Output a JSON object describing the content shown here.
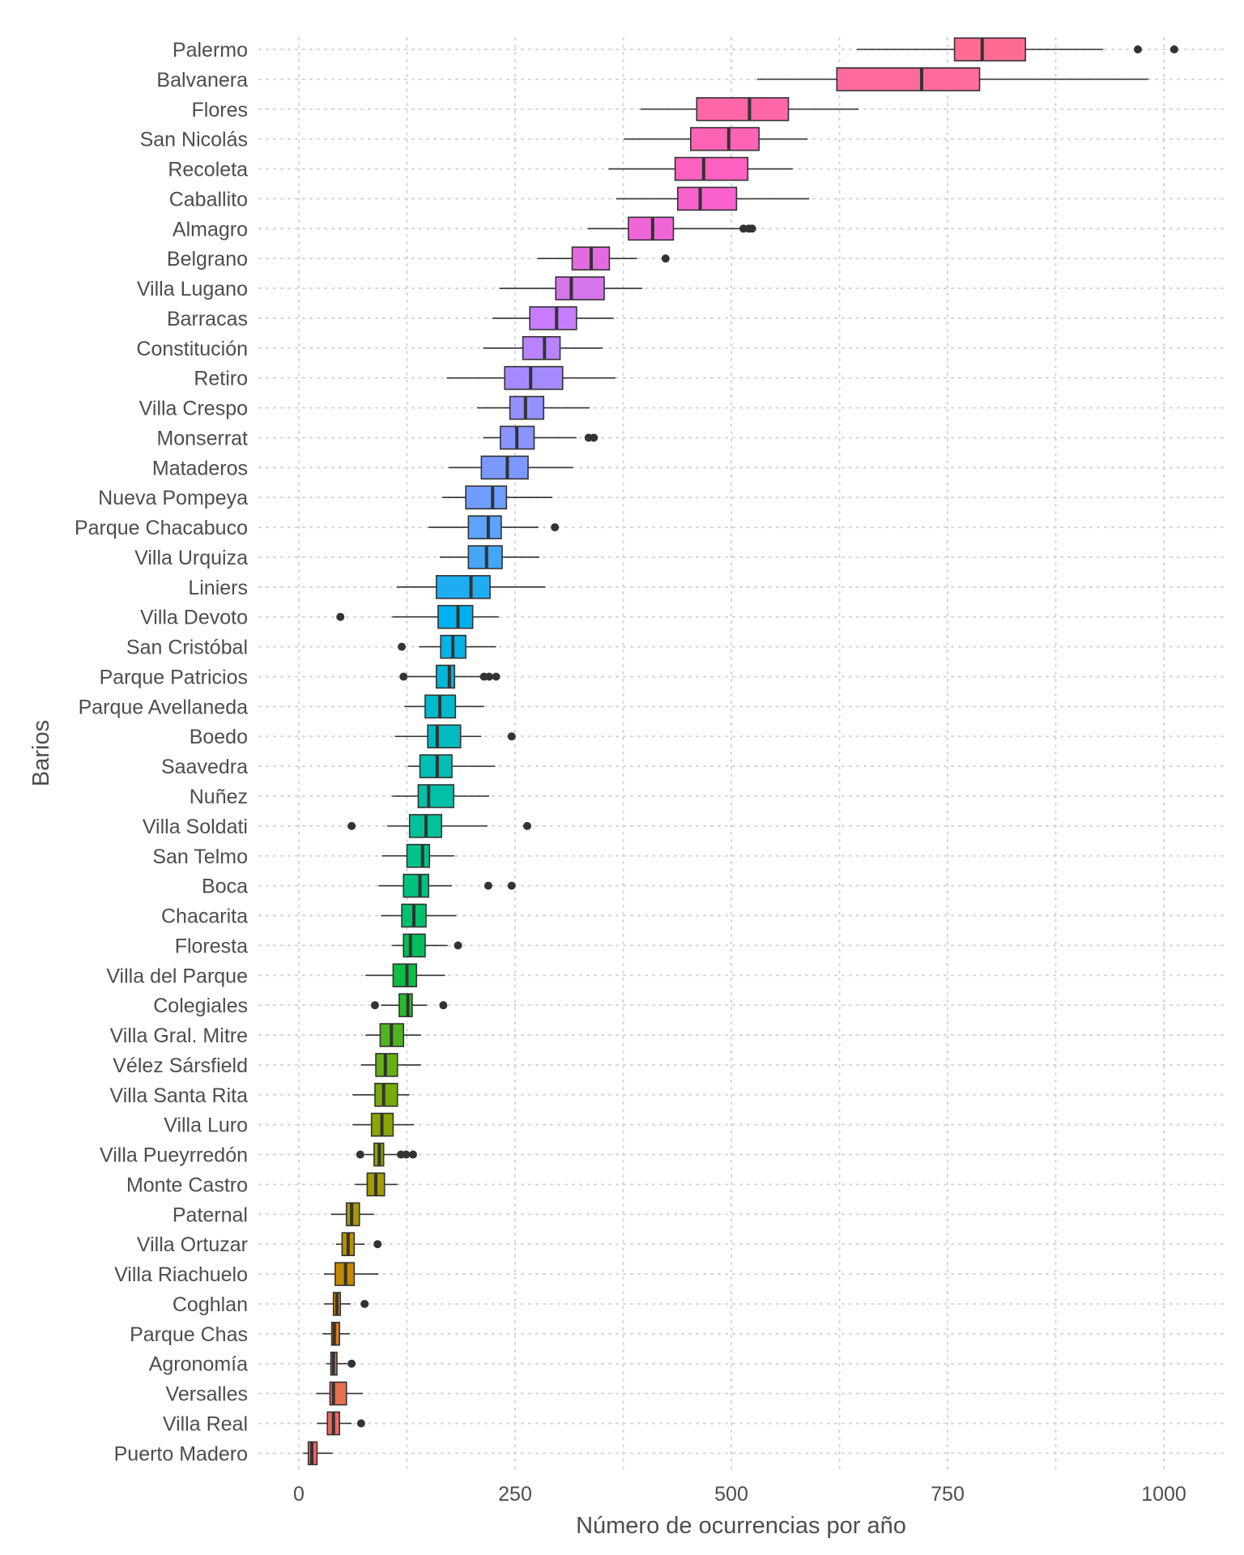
{
  "chart_data": {
    "type": "boxplot",
    "orientation": "horizontal",
    "title": "",
    "xlabel": "Número de ocurrencias por año",
    "ylabel": "Barios",
    "xlim": [
      -55,
      1065
    ],
    "x_ticks": [
      0,
      250,
      500,
      750,
      1000
    ],
    "x_tick_labels": [
      "0",
      "250",
      "500",
      "750",
      "1000"
    ],
    "grid": "dotted major and minor gridlines",
    "legend": "none",
    "categories": [
      "Palermo",
      "Balvanera",
      "Flores",
      "San Nicolás",
      "Recoleta",
      "Caballito",
      "Almagro",
      "Belgrano",
      "Villa Lugano",
      "Barracas",
      "Constitución",
      "Retiro",
      "Villa Crespo",
      "Monserrat",
      "Mataderos",
      "Nueva Pompeya",
      "Parque Chacabuco",
      "Villa Urquiza",
      "Liniers",
      "Villa Devoto",
      "San Cristóbal",
      "Parque Patricios",
      "Parque Avellaneda",
      "Boedo",
      "Saavedra",
      "Nuñez",
      "Villa Soldati",
      "San Telmo",
      "Boca",
      "Chacarita",
      "Floresta",
      "Villa del Parque",
      "Colegiales",
      "Villa Gral. Mitre",
      "Vélez Sársfield",
      "Villa Santa Rita",
      "Villa Luro",
      "Villa Pueyrredón",
      "Monte Castro",
      "Paternal",
      "Villa Ortuzar",
      "Villa Riachuelo",
      "Coghlan",
      "Parque Chas",
      "Agronomía",
      "Versalles",
      "Villa Real",
      "Puerto Madero"
    ],
    "colors": [
      "#FF6C93",
      "#FF6B9E",
      "#FF67A8",
      "#FF63B5",
      "#FD61C1",
      "#F962CC",
      "#F066D8",
      "#E46AE2",
      "#D674EB",
      "#C77CFF",
      "#B983FF",
      "#A58AFF",
      "#9590FF",
      "#8A94FF",
      "#7B98FF",
      "#6E9CFF",
      "#5CA2FF",
      "#45A6F7",
      "#1FADF2",
      "#00B1EF",
      "#00B4E4",
      "#00B7D8",
      "#00B9CC",
      "#00BBC0",
      "#00BEB4",
      "#00C0A7",
      "#00C19A",
      "#00C28C",
      "#00C17D",
      "#00C16C",
      "#00BF5A",
      "#0DBD44",
      "#27BA2D",
      "#4EB51F",
      "#66B013",
      "#78AC0B",
      "#88A700",
      "#94A200",
      "#A29D00",
      "#AD9700",
      "#B99000",
      "#C48900",
      "#D08300",
      "#DB7C1E",
      "#E2773D",
      "#EA6F4E",
      "#F0675B",
      "#F76262"
    ],
    "series": [
      {
        "category": "Palermo",
        "min": 645,
        "q1": 758,
        "median": 790,
        "q3": 840,
        "max": 930,
        "outliers": [
          970,
          1012
        ]
      },
      {
        "category": "Balvanera",
        "min": 530,
        "q1": 622,
        "median": 720,
        "q3": 787,
        "max": 982,
        "outliers": []
      },
      {
        "category": "Flores",
        "min": 395,
        "q1": 460,
        "median": 521,
        "q3": 566,
        "max": 647,
        "outliers": []
      },
      {
        "category": "San Nicolás",
        "min": 376,
        "q1": 453,
        "median": 497,
        "q3": 532,
        "max": 588,
        "outliers": []
      },
      {
        "category": "Recoleta",
        "min": 358,
        "q1": 435,
        "median": 468,
        "q3": 519,
        "max": 571,
        "outliers": []
      },
      {
        "category": "Caballito",
        "min": 367,
        "q1": 438,
        "median": 464,
        "q3": 506,
        "max": 590,
        "outliers": []
      },
      {
        "category": "Almagro",
        "min": 334,
        "q1": 381,
        "median": 409,
        "q3": 433,
        "max": 512,
        "outliers": [
          514,
          520,
          524
        ]
      },
      {
        "category": "Belgrano",
        "min": 276,
        "q1": 316,
        "median": 338,
        "q3": 359,
        "max": 391,
        "outliers": [
          424
        ]
      },
      {
        "category": "Villa Lugano",
        "min": 232,
        "q1": 297,
        "median": 315,
        "q3": 353,
        "max": 397,
        "outliers": []
      },
      {
        "category": "Barracas",
        "min": 224,
        "q1": 267,
        "median": 298,
        "q3": 321,
        "max": 364,
        "outliers": []
      },
      {
        "category": "Constitución",
        "min": 213,
        "q1": 259,
        "median": 284,
        "q3": 302,
        "max": 351,
        "outliers": []
      },
      {
        "category": "Retiro",
        "min": 171,
        "q1": 238,
        "median": 268,
        "q3": 305,
        "max": 366,
        "outliers": []
      },
      {
        "category": "Villa Crespo",
        "min": 206,
        "q1": 244,
        "median": 262,
        "q3": 283,
        "max": 336,
        "outliers": []
      },
      {
        "category": "Monserrat",
        "min": 213,
        "q1": 233,
        "median": 252,
        "q3": 272,
        "max": 321,
        "outliers": [
          335,
          341
        ]
      },
      {
        "category": "Mataderos",
        "min": 173,
        "q1": 211,
        "median": 241,
        "q3": 265,
        "max": 317,
        "outliers": []
      },
      {
        "category": "Nueva Pompeya",
        "min": 166,
        "q1": 193,
        "median": 224,
        "q3": 240,
        "max": 293,
        "outliers": []
      },
      {
        "category": "Parque Chacabuco",
        "min": 150,
        "q1": 196,
        "median": 219,
        "q3": 234,
        "max": 277,
        "outliers": [
          296
        ]
      },
      {
        "category": "Villa Urquiza",
        "min": 163,
        "q1": 196,
        "median": 217,
        "q3": 235,
        "max": 278,
        "outliers": []
      },
      {
        "category": "Liniers",
        "min": 113,
        "q1": 159,
        "median": 199,
        "q3": 221,
        "max": 285,
        "outliers": []
      },
      {
        "category": "Villa Devoto",
        "min": 108,
        "q1": 161,
        "median": 184,
        "q3": 201,
        "max": 231,
        "outliers": [
          48
        ]
      },
      {
        "category": "San Cristóbal",
        "min": 139,
        "q1": 164,
        "median": 178,
        "q3": 193,
        "max": 228,
        "outliers": [
          119
        ]
      },
      {
        "category": "Parque Patricios",
        "min": 124,
        "q1": 159,
        "median": 174,
        "q3": 180,
        "max": 210,
        "outliers": [
          121,
          214,
          220,
          228
        ]
      },
      {
        "category": "Parque Avellaneda",
        "min": 122,
        "q1": 146,
        "median": 163,
        "q3": 181,
        "max": 214,
        "outliers": []
      },
      {
        "category": "Boedo",
        "min": 111,
        "q1": 149,
        "median": 160,
        "q3": 187,
        "max": 211,
        "outliers": [
          246
        ]
      },
      {
        "category": "Saavedra",
        "min": 126,
        "q1": 140,
        "median": 160,
        "q3": 177,
        "max": 227,
        "outliers": []
      },
      {
        "category": "Nuñez",
        "min": 108,
        "q1": 138,
        "median": 150,
        "q3": 179,
        "max": 220,
        "outliers": []
      },
      {
        "category": "Villa Soldati",
        "min": 102,
        "q1": 128,
        "median": 147,
        "q3": 165,
        "max": 218,
        "outliers": [
          61,
          264
        ]
      },
      {
        "category": "San Telmo",
        "min": 96,
        "q1": 125,
        "median": 143,
        "q3": 151,
        "max": 180,
        "outliers": []
      },
      {
        "category": "Boca",
        "min": 92,
        "q1": 121,
        "median": 140,
        "q3": 150,
        "max": 177,
        "outliers": [
          219,
          246
        ]
      },
      {
        "category": "Chacarita",
        "min": 95,
        "q1": 119,
        "median": 133,
        "q3": 147,
        "max": 182,
        "outliers": []
      },
      {
        "category": "Floresta",
        "min": 108,
        "q1": 121,
        "median": 129,
        "q3": 146,
        "max": 172,
        "outliers": [
          184
        ]
      },
      {
        "category": "Villa del Parque",
        "min": 77,
        "q1": 109,
        "median": 125,
        "q3": 136,
        "max": 169,
        "outliers": []
      },
      {
        "category": "Colegiales",
        "min": 95,
        "q1": 116,
        "median": 126,
        "q3": 131,
        "max": 148,
        "outliers": [
          88,
          167
        ]
      },
      {
        "category": "Villa Gral. Mitre",
        "min": 77,
        "q1": 94,
        "median": 107,
        "q3": 121,
        "max": 141,
        "outliers": []
      },
      {
        "category": "Vélez Sársfield",
        "min": 72,
        "q1": 89,
        "median": 100,
        "q3": 114,
        "max": 141,
        "outliers": []
      },
      {
        "category": "Villa Santa Rita",
        "min": 62,
        "q1": 88,
        "median": 98,
        "q3": 114,
        "max": 128,
        "outliers": []
      },
      {
        "category": "Villa Luro",
        "min": 62,
        "q1": 84,
        "median": 96,
        "q3": 109,
        "max": 133,
        "outliers": []
      },
      {
        "category": "Villa Pueyrredón",
        "min": 76,
        "q1": 87,
        "median": 93,
        "q3": 98,
        "max": 114,
        "outliers": [
          71,
          118,
          124,
          132
        ]
      },
      {
        "category": "Monte Castro",
        "min": 65,
        "q1": 79,
        "median": 89,
        "q3": 99,
        "max": 114,
        "outliers": []
      },
      {
        "category": "Paternal",
        "min": 37,
        "q1": 55,
        "median": 61,
        "q3": 70,
        "max": 87,
        "outliers": []
      },
      {
        "category": "Villa Ortuzar",
        "min": 43,
        "q1": 50,
        "median": 57,
        "q3": 64,
        "max": 76,
        "outliers": [
          91
        ]
      },
      {
        "category": "Villa Riachuelo",
        "min": 29,
        "q1": 42,
        "median": 54,
        "q3": 64,
        "max": 92,
        "outliers": []
      },
      {
        "category": "Coghlan",
        "min": 29,
        "q1": 40,
        "median": 44,
        "q3": 48,
        "max": 60,
        "outliers": [
          76
        ]
      },
      {
        "category": "Parque Chas",
        "min": 27,
        "q1": 38,
        "median": 41,
        "q3": 47,
        "max": 59,
        "outliers": []
      },
      {
        "category": "Agronomía",
        "min": 32,
        "q1": 37,
        "median": 40,
        "q3": 44,
        "max": 56,
        "outliers": [
          61
        ]
      },
      {
        "category": "Versalles",
        "min": 20,
        "q1": 36,
        "median": 40,
        "q3": 55,
        "max": 74,
        "outliers": []
      },
      {
        "category": "Villa Real",
        "min": 21,
        "q1": 33,
        "median": 40,
        "q3": 47,
        "max": 61,
        "outliers": [
          72
        ]
      },
      {
        "category": "Puerto Madero",
        "min": 5,
        "q1": 11,
        "median": 15,
        "q3": 21,
        "max": 39,
        "outliers": []
      }
    ]
  }
}
